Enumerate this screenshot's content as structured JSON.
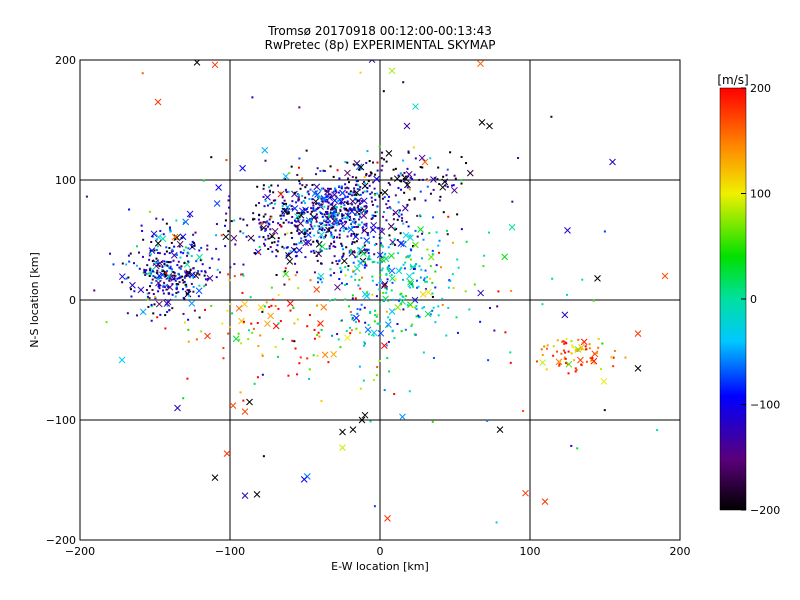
{
  "chart_data": {
    "type": "scatter",
    "title": "Tromsø 20170918 00:12:00-00:13:43",
    "subtitle": "RwPretec (8p) EXPERIMENTAL SKYMAP",
    "xlabel": "E-W location [km]",
    "ylabel": "N-S location [km]",
    "xlim": [
      -200,
      200
    ],
    "ylim": [
      -200,
      200
    ],
    "x_ticks": [
      "-200",
      "-100",
      "0",
      "100",
      "200"
    ],
    "y_ticks": [
      "-200",
      "-100",
      "0",
      "100",
      "200"
    ],
    "grid": true,
    "colorbar": {
      "label": "[m/s]",
      "range": [
        -200,
        200
      ],
      "ticks": [
        "200",
        "100",
        "0",
        "-100",
        "-200"
      ],
      "colormap": "rainbow (black → purple → blue → cyan → green → yellow → red)"
    },
    "markers": {
      "small": "dot",
      "large": "x"
    },
    "clusters": [
      {
        "name": "west",
        "x": -140,
        "y": 25,
        "sx": 14,
        "sy": 18,
        "n": 320,
        "vmean": -120,
        "vsd": 70
      },
      {
        "name": "central-north",
        "x": -40,
        "y": 65,
        "sx": 28,
        "sy": 20,
        "n": 520,
        "vmean": -140,
        "vsd": 70
      },
      {
        "name": "central-core",
        "x": -30,
        "y": 75,
        "sx": 14,
        "sy": 12,
        "n": 220,
        "vmean": -90,
        "vsd": 50
      },
      {
        "name": "center-low",
        "x": 10,
        "y": 15,
        "sx": 22,
        "sy": 25,
        "n": 280,
        "vmean": -20,
        "vsd": 50
      },
      {
        "name": "north-x-ridge",
        "x": 10,
        "y": 100,
        "sx": 25,
        "sy": 12,
        "n": 120,
        "vmean": -170,
        "vsd": 60
      },
      {
        "name": "east",
        "x": 130,
        "y": -47,
        "sx": 12,
        "sy": 7,
        "n": 80,
        "vmean": 150,
        "vsd": 50
      },
      {
        "name": "south-scatter",
        "x": -60,
        "y": -20,
        "sx": 40,
        "sy": 25,
        "n": 120,
        "vmean": 130,
        "vsd": 80
      },
      {
        "name": "sparse",
        "x": 0,
        "y": 20,
        "sx": 90,
        "sy": 75,
        "n": 140,
        "vmean": 0,
        "vsd": 150
      }
    ],
    "outliers": [
      [
        -122,
        198,
        -200
      ],
      [
        -110,
        196,
        180
      ],
      [
        67,
        197,
        160
      ],
      [
        8,
        191,
        80
      ],
      [
        68,
        148,
        -200
      ],
      [
        73,
        145,
        -200
      ],
      [
        155,
        115,
        -120
      ],
      [
        125,
        58,
        -120
      ],
      [
        145,
        18,
        -200
      ],
      [
        -172,
        -50,
        -40
      ],
      [
        -135,
        -90,
        -120
      ],
      [
        -98,
        -88,
        170
      ],
      [
        -87,
        -85,
        -200
      ],
      [
        -90,
        -93,
        170
      ],
      [
        -10,
        -96,
        -200
      ],
      [
        -12,
        -100,
        -200
      ],
      [
        -18,
        -108,
        -200
      ],
      [
        -25,
        -110,
        -200
      ],
      [
        80,
        -108,
        -200
      ],
      [
        -25,
        -123,
        90
      ],
      [
        -102,
        -128,
        180
      ],
      [
        -110,
        -148,
        -200
      ],
      [
        -90,
        -163,
        -120
      ],
      [
        -82,
        -162,
        -200
      ],
      [
        97,
        -161,
        180
      ],
      [
        110,
        -168,
        180
      ],
      [
        5,
        -182,
        180
      ],
      [
        172,
        -57,
        -200
      ],
      [
        172,
        -28,
        180
      ],
      [
        -10,
        95,
        -200
      ],
      [
        30,
        115,
        160
      ],
      [
        -115,
        -30,
        180
      ],
      [
        -148,
        165,
        180
      ],
      [
        190,
        20,
        170
      ]
    ]
  }
}
